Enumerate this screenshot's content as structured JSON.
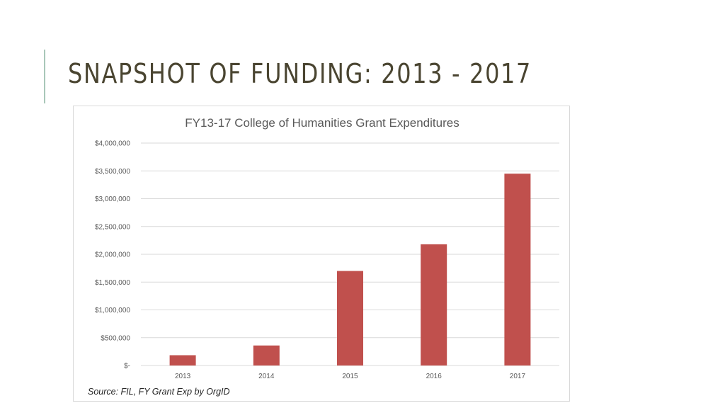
{
  "slide": {
    "title": "SNAPSHOT OF FUNDING: 2013 - 2017"
  },
  "colors": {
    "bar": "#c0504d",
    "accent": "#a9c7b9",
    "title_text": "#4a4531",
    "grid": "#d9d9d9"
  },
  "chart_data": {
    "type": "bar",
    "title": "FY13-17 College of Humanities Grant Expenditures",
    "categories": [
      "2013",
      "2014",
      "2015",
      "2016",
      "2017"
    ],
    "values": [
      185000,
      360000,
      1700000,
      2180000,
      3450000
    ],
    "ylim": [
      0,
      4000000
    ],
    "yticks": [
      0,
      500000,
      1000000,
      1500000,
      2000000,
      2500000,
      3000000,
      3500000,
      4000000
    ],
    "ytick_labels": [
      "$-",
      "$500,000",
      "$1,000,000",
      "$1,500,000",
      "$2,000,000",
      "$2,500,000",
      "$3,000,000",
      "$3,500,000",
      "$4,000,000"
    ],
    "grid": true,
    "legend": "none",
    "source": "Source: FIL, FY Grant Exp by OrgID"
  }
}
